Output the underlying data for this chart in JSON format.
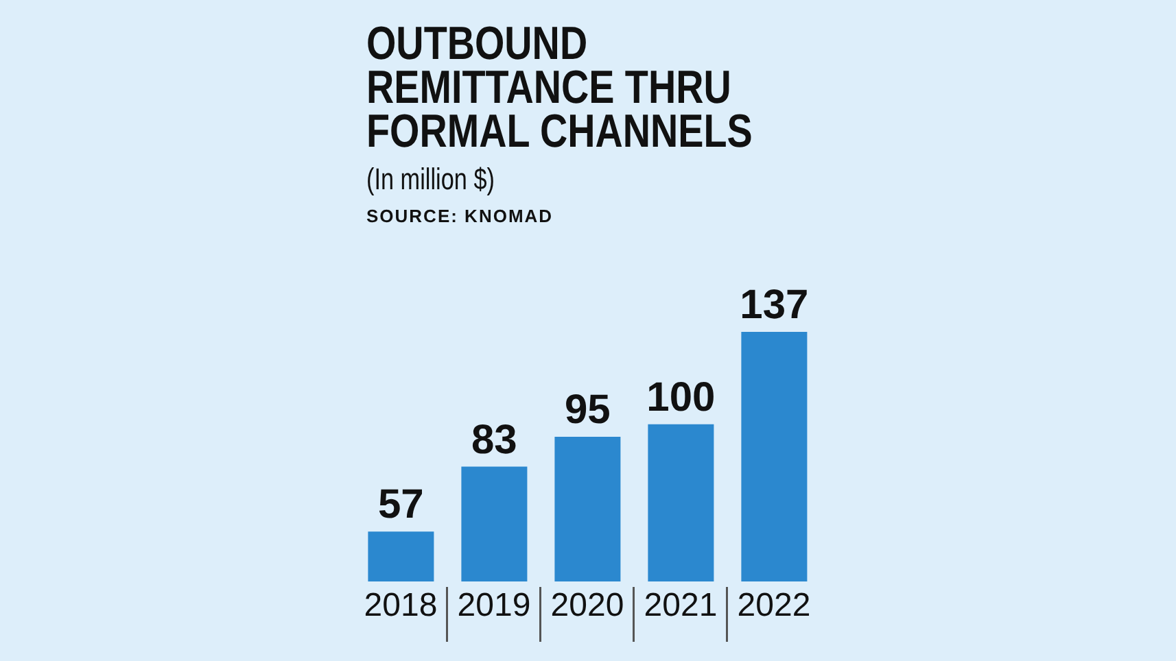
{
  "chart_data": {
    "type": "bar",
    "title": "OUTBOUND REMITTANCE THRU FORMAL CHANNELS",
    "subtitle": "(In million $)",
    "annotations": [
      "SOURCE: KNOMAD"
    ],
    "categories": [
      "2018",
      "2019",
      "2020",
      "2021",
      "2022"
    ],
    "values": [
      57,
      83,
      95,
      100,
      137
    ],
    "color": "#2b88cf",
    "ylim": [
      37,
      137
    ],
    "tick_labels": "x",
    "data_labels": true
  }
}
